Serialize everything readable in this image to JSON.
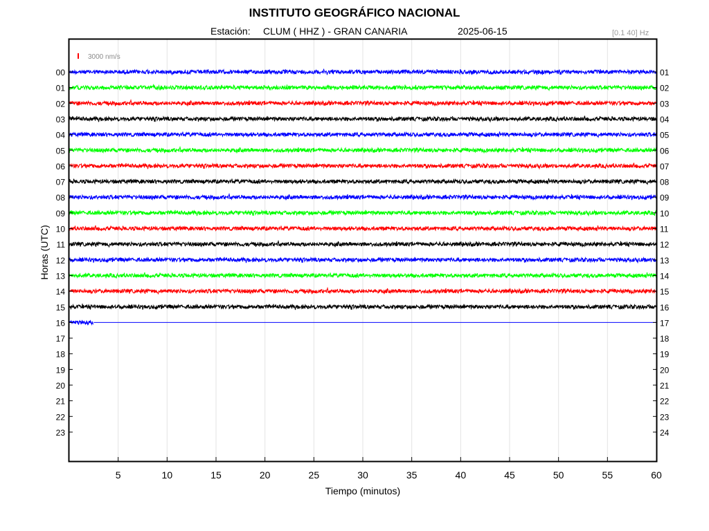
{
  "header": {
    "title": "INSTITUTO GEOGRÁFICO NACIONAL",
    "station_label": "Estación:",
    "station_name": "CLUM ( HHZ ) - GRAN CANARIA",
    "date": "2025-06-15",
    "filter": "[0.1 40] Hz"
  },
  "chart_data": {
    "type": "line",
    "title": "INSTITUTO GEOGRÁFICO NACIONAL",
    "xlabel": "Tiempo (minutos)",
    "ylabel": "Horas (UTC)",
    "xlim": [
      0,
      60
    ],
    "x_ticks": [
      5,
      10,
      15,
      20,
      25,
      30,
      35,
      40,
      45,
      50,
      55,
      60
    ],
    "left_hour_labels": [
      "00",
      "01",
      "02",
      "03",
      "04",
      "05",
      "06",
      "07",
      "08",
      "09",
      "10",
      "11",
      "12",
      "13",
      "14",
      "15",
      "16",
      "17",
      "18",
      "19",
      "20",
      "21",
      "22",
      "23"
    ],
    "right_hour_labels": [
      "01",
      "02",
      "03",
      "04",
      "05",
      "06",
      "07",
      "08",
      "09",
      "10",
      "11",
      "12",
      "13",
      "14",
      "15",
      "16",
      "17",
      "18",
      "19",
      "20",
      "21",
      "22",
      "23",
      "24"
    ],
    "scale_bar_label": "3000 nm/s",
    "scale_bar_color": "#ff0000",
    "grid": "vertical",
    "series": [
      {
        "hour": "00",
        "color": "#0000ff",
        "end_minute": 60
      },
      {
        "hour": "01",
        "color": "#00ff00",
        "end_minute": 60
      },
      {
        "hour": "02",
        "color": "#ff0000",
        "end_minute": 60
      },
      {
        "hour": "03",
        "color": "#000000",
        "end_minute": 60
      },
      {
        "hour": "04",
        "color": "#0000ff",
        "end_minute": 60
      },
      {
        "hour": "05",
        "color": "#00ff00",
        "end_minute": 60
      },
      {
        "hour": "06",
        "color": "#ff0000",
        "end_minute": 60
      },
      {
        "hour": "07",
        "color": "#000000",
        "end_minute": 60
      },
      {
        "hour": "08",
        "color": "#0000ff",
        "end_minute": 60
      },
      {
        "hour": "09",
        "color": "#00ff00",
        "end_minute": 60
      },
      {
        "hour": "10",
        "color": "#ff0000",
        "end_minute": 60
      },
      {
        "hour": "11",
        "color": "#000000",
        "end_minute": 60
      },
      {
        "hour": "12",
        "color": "#0000ff",
        "end_minute": 60
      },
      {
        "hour": "13",
        "color": "#00ff00",
        "end_minute": 60
      },
      {
        "hour": "14",
        "color": "#ff0000",
        "end_minute": 60
      },
      {
        "hour": "15",
        "color": "#000000",
        "end_minute": 60
      },
      {
        "hour": "16",
        "color": "#0000ff",
        "end_minute": 2.5,
        "baseline_to": 60
      }
    ]
  }
}
